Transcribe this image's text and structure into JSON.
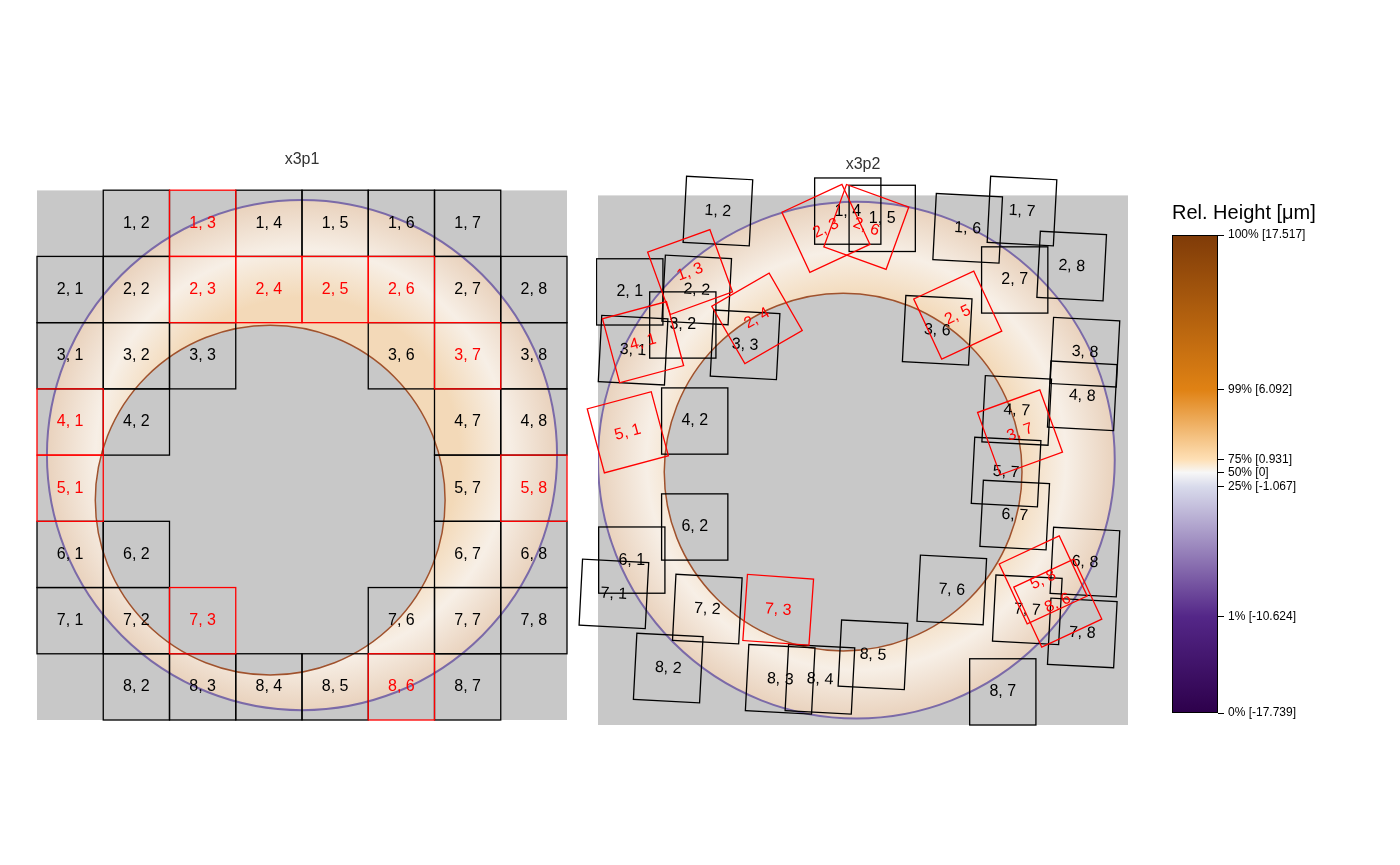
{
  "chart_data": [
    {
      "type": "cell_map",
      "title": "x3p1",
      "xlim": [
        0,
        8
      ],
      "ylim": [
        0,
        8
      ],
      "tick_labels": false,
      "ring": {
        "outer": {
          "x": 4.0,
          "y": 4.0,
          "r": 3.85
        },
        "inner": {
          "x": 3.52,
          "y": 3.32,
          "r": 2.64
        }
      },
      "series": [
        {
          "color": "#000000",
          "cells": [
            {
              "label": "1, 2",
              "x": 1.5,
              "y": 7.5
            },
            {
              "label": "1, 4",
              "x": 3.5,
              "y": 7.5
            },
            {
              "label": "1, 5",
              "x": 4.5,
              "y": 7.5
            },
            {
              "label": "1, 6",
              "x": 5.5,
              "y": 7.5
            },
            {
              "label": "1, 7",
              "x": 6.5,
              "y": 7.5
            },
            {
              "label": "2, 1",
              "x": 0.5,
              "y": 6.5
            },
            {
              "label": "2, 2",
              "x": 1.5,
              "y": 6.5
            },
            {
              "label": "2, 7",
              "x": 6.5,
              "y": 6.5
            },
            {
              "label": "2, 8",
              "x": 7.5,
              "y": 6.5
            },
            {
              "label": "3, 1",
              "x": 0.5,
              "y": 5.5
            },
            {
              "label": "3, 2",
              "x": 1.5,
              "y": 5.5
            },
            {
              "label": "3, 3",
              "x": 2.5,
              "y": 5.5
            },
            {
              "label": "3, 6",
              "x": 5.5,
              "y": 5.5
            },
            {
              "label": "3, 8",
              "x": 7.5,
              "y": 5.5
            },
            {
              "label": "4, 2",
              "x": 1.5,
              "y": 4.5
            },
            {
              "label": "4, 7",
              "x": 6.5,
              "y": 4.5
            },
            {
              "label": "4, 8",
              "x": 7.5,
              "y": 4.5
            },
            {
              "label": "5, 7",
              "x": 6.5,
              "y": 3.5
            },
            {
              "label": "6, 1",
              "x": 0.5,
              "y": 2.5
            },
            {
              "label": "6, 2",
              "x": 1.5,
              "y": 2.5
            },
            {
              "label": "6, 7",
              "x": 6.5,
              "y": 2.5
            },
            {
              "label": "6, 8",
              "x": 7.5,
              "y": 2.5
            },
            {
              "label": "7, 1",
              "x": 0.5,
              "y": 1.5
            },
            {
              "label": "7, 2",
              "x": 1.5,
              "y": 1.5
            },
            {
              "label": "7, 6",
              "x": 5.5,
              "y": 1.5
            },
            {
              "label": "7, 7",
              "x": 6.5,
              "y": 1.5
            },
            {
              "label": "7, 8",
              "x": 7.5,
              "y": 1.5
            },
            {
              "label": "8, 2",
              "x": 1.5,
              "y": 0.5
            },
            {
              "label": "8, 3",
              "x": 2.5,
              "y": 0.5
            },
            {
              "label": "8, 4",
              "x": 3.5,
              "y": 0.5
            },
            {
              "label": "8, 5",
              "x": 4.5,
              "y": 0.5
            },
            {
              "label": "8, 7",
              "x": 6.5,
              "y": 0.5
            }
          ]
        },
        {
          "color": "#ff0000",
          "cells": [
            {
              "label": "1, 3",
              "x": 2.5,
              "y": 7.5
            },
            {
              "label": "2, 3",
              "x": 2.5,
              "y": 6.5
            },
            {
              "label": "2, 4",
              "x": 3.5,
              "y": 6.5
            },
            {
              "label": "2, 5",
              "x": 4.5,
              "y": 6.5
            },
            {
              "label": "2, 6",
              "x": 5.5,
              "y": 6.5
            },
            {
              "label": "3, 7",
              "x": 6.5,
              "y": 5.5
            },
            {
              "label": "4, 1",
              "x": 0.5,
              "y": 4.5
            },
            {
              "label": "5, 1",
              "x": 0.5,
              "y": 3.5
            },
            {
              "label": "5, 8",
              "x": 7.5,
              "y": 3.5
            },
            {
              "label": "7, 3",
              "x": 2.5,
              "y": 1.5
            },
            {
              "label": "8, 6",
              "x": 5.5,
              "y": 0.5
            }
          ]
        }
      ]
    },
    {
      "type": "cell_map",
      "title": "x3p2",
      "xlim": [
        0,
        8
      ],
      "ylim": [
        0,
        8
      ],
      "tick_labels": false,
      "ring": {
        "outer": {
          "x": 3.9,
          "y": 4.0,
          "r": 3.9
        },
        "inner": {
          "x": 3.7,
          "y": 3.82,
          "r": 2.7
        }
      },
      "series": [
        {
          "color": "#000000",
          "cells": [
            {
              "label": "1, 2",
              "x": 1.81,
              "y": 7.76,
              "angle": -3
            },
            {
              "label": "1, 4",
              "x": 3.77,
              "y": 7.76,
              "angle": 0
            },
            {
              "label": "1, 5",
              "x": 4.29,
              "y": 7.65,
              "angle": 0
            },
            {
              "label": "1, 6",
              "x": 5.58,
              "y": 7.5,
              "angle": -3
            },
            {
              "label": "1, 7",
              "x": 6.4,
              "y": 7.76,
              "angle": -3
            },
            {
              "label": "2, 1",
              "x": 0.48,
              "y": 6.54,
              "angle": 0
            },
            {
              "label": "2, 2",
              "x": 1.49,
              "y": 6.57,
              "angle": -3
            },
            {
              "label": "2, 7",
              "x": 6.29,
              "y": 6.72,
              "angle": 0
            },
            {
              "label": "2, 8",
              "x": 7.15,
              "y": 6.93,
              "angle": -3
            },
            {
              "label": "3, 1",
              "x": 0.53,
              "y": 5.66,
              "angle": -3
            },
            {
              "label": "3, 2",
              "x": 1.28,
              "y": 6.04,
              "angle": 0
            },
            {
              "label": "3, 3",
              "x": 2.22,
              "y": 5.74,
              "angle": -3
            },
            {
              "label": "3, 6",
              "x": 5.12,
              "y": 5.96,
              "angle": -3
            },
            {
              "label": "3, 8",
              "x": 7.35,
              "y": 5.63,
              "angle": -3
            },
            {
              "label": "4, 2",
              "x": 1.46,
              "y": 4.59,
              "angle": 0
            },
            {
              "label": "4, 7",
              "x": 6.32,
              "y": 4.75,
              "angle": -3
            },
            {
              "label": "4, 8",
              "x": 7.31,
              "y": 4.97,
              "angle": -3
            },
            {
              "label": "5, 7",
              "x": 6.16,
              "y": 3.82,
              "angle": -3
            },
            {
              "label": "6, 1",
              "x": 0.51,
              "y": 2.49,
              "angle": 0
            },
            {
              "label": "6, 2",
              "x": 1.46,
              "y": 2.99,
              "angle": 0
            },
            {
              "label": "6, 7",
              "x": 6.29,
              "y": 3.17,
              "angle": -3
            },
            {
              "label": "6, 8",
              "x": 7.35,
              "y": 2.46,
              "angle": -3
            },
            {
              "label": "7, 1",
              "x": 0.24,
              "y": 1.98,
              "angle": -3
            },
            {
              "label": "7, 2",
              "x": 1.65,
              "y": 1.75,
              "angle": -3
            },
            {
              "label": "7, 6",
              "x": 5.34,
              "y": 2.04,
              "angle": -3
            },
            {
              "label": "7, 7",
              "x": 6.48,
              "y": 1.74,
              "angle": -3
            },
            {
              "label": "7, 8",
              "x": 7.31,
              "y": 1.39,
              "angle": -3
            },
            {
              "label": "8, 2",
              "x": 1.06,
              "y": 0.86,
              "angle": -3
            },
            {
              "label": "8, 3",
              "x": 2.75,
              "y": 0.69,
              "angle": -3
            },
            {
              "label": "8, 4",
              "x": 3.35,
              "y": 0.69,
              "angle": -3
            },
            {
              "label": "8, 5",
              "x": 4.15,
              "y": 1.06,
              "angle": -3
            },
            {
              "label": "8, 7",
              "x": 6.11,
              "y": 0.5,
              "angle": 0
            }
          ]
        },
        {
          "color": "#ff0000",
          "cells": [
            {
              "label": "1, 3",
              "x": 1.39,
              "y": 6.84,
              "angle": 20
            },
            {
              "label": "2, 3",
              "x": 3.44,
              "y": 7.5,
              "angle": 25
            },
            {
              "label": "2, 4",
              "x": 2.4,
              "y": 6.14,
              "angle": 30
            },
            {
              "label": "2, 5",
              "x": 5.43,
              "y": 6.19,
              "angle": 25
            },
            {
              "label": "2, 6",
              "x": 4.05,
              "y": 7.52,
              "angle": -20
            },
            {
              "label": "3, 7",
              "x": 6.37,
              "y": 4.42,
              "angle": 20
            },
            {
              "label": "4, 1",
              "x": 0.68,
              "y": 5.78,
              "angle": 15
            },
            {
              "label": "5, 1",
              "x": 0.45,
              "y": 4.42,
              "angle": 15
            },
            {
              "label": "5, 8",
              "x": 6.72,
              "y": 2.19,
              "angle": 25
            },
            {
              "label": "7, 3",
              "x": 2.72,
              "y": 1.74,
              "angle": -4
            },
            {
              "label": "8, 6",
              "x": 6.94,
              "y": 1.84,
              "angle": 25
            }
          ]
        }
      ]
    },
    {
      "type": "colorbar",
      "title": "Rel. Height [μm]",
      "ylim": [
        -17.739,
        17.517
      ],
      "yticks": [
        {
          "value": -17.739,
          "label": "0% [-17.739]"
        },
        {
          "value": -10.624,
          "label": "1% [-10.624]"
        },
        {
          "value": -1.067,
          "label": "25% [-1.067]"
        },
        {
          "value": 0,
          "label": "50% [0]"
        },
        {
          "value": 0.931,
          "label": "75% [0.931]"
        },
        {
          "value": 6.092,
          "label": "99% [6.092]"
        },
        {
          "value": 17.517,
          "label": "100% [17.517]"
        }
      ],
      "colors": [
        "#2d004b",
        "#542788",
        "#d8daeb",
        "#f7f7f7",
        "#fee0b6",
        "#e08214",
        "#7f3b08"
      ]
    }
  ]
}
